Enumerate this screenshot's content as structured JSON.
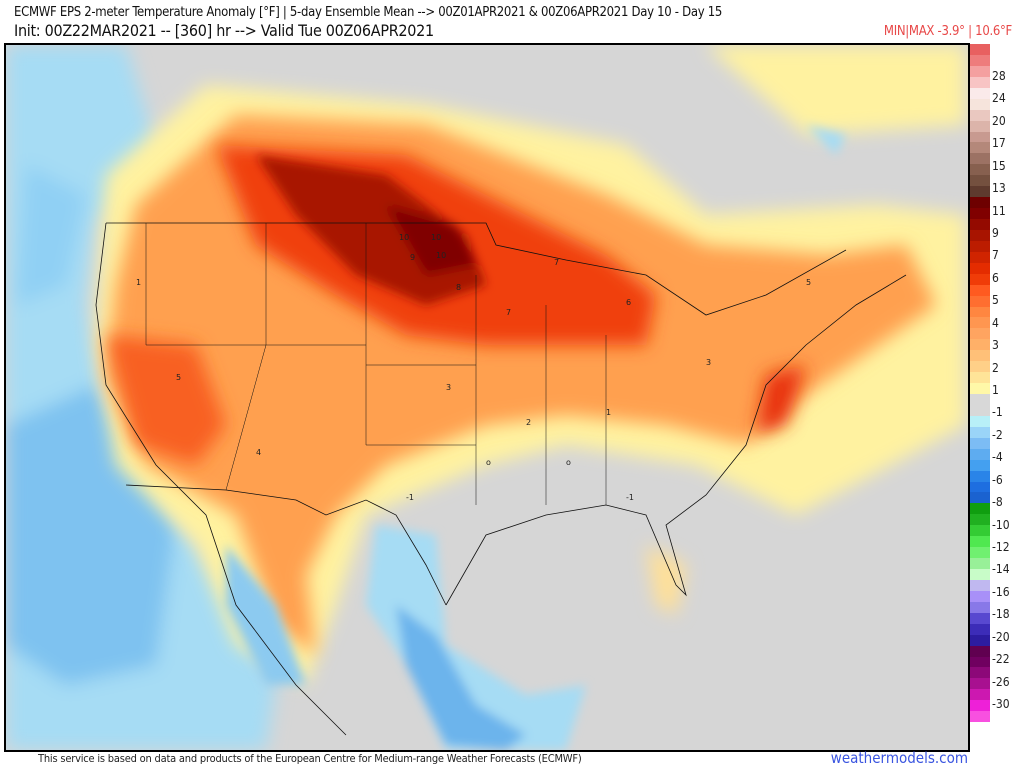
{
  "header": {
    "title": "ECMWF EPS 2-meter Temperature Anomaly [°F] | 5-day Ensemble Mean --> 00Z01APR2021 & 00Z06APR2021   Day 10 - Day 15",
    "init_line": "Init: 00Z22MAR2021 -- [360] hr --> Valid Tue 00Z06APR2021",
    "minmax": "MIN|MAX -3.9° | 10.6°F"
  },
  "colorbar": {
    "labels": [
      "28",
      "24",
      "20",
      "17",
      "15",
      "13",
      "11",
      "9",
      "7",
      "6",
      "5",
      "4",
      "3",
      "2",
      "1",
      "-1",
      "-2",
      "-4",
      "-6",
      "-8",
      "-10",
      "-12",
      "-14",
      "-16",
      "-18",
      "-20",
      "-22",
      "-26",
      "-30"
    ],
    "colors": [
      "#e86060",
      "#ee7c7c",
      "#f4a0a0",
      "#f8c4c4",
      "#faeaea",
      "#f6e4dc",
      "#eac8c0",
      "#dcb4aa",
      "#c89a90",
      "#b4887a",
      "#9c7264",
      "#87604f",
      "#74503f",
      "#5e3a2e",
      "#6e0000",
      "#800000",
      "#940a00",
      "#a81400",
      "#bc1c00",
      "#d02400",
      "#e42c00",
      "#f03c08",
      "#ff5a20",
      "#ff6e30",
      "#ff8640",
      "#ff9650",
      "#ffa460",
      "#ffb068",
      "#ffc078",
      "#ffd088",
      "#ffe498",
      "#fff8a8",
      "#d8d8d8",
      "#d8d8d8",
      "#b8f0f8",
      "#9ad4f8",
      "#7cbcf4",
      "#5eacf0",
      "#44a0f0",
      "#2a84e8",
      "#1e6ee0",
      "#1a62d0",
      "#109e10",
      "#20b020",
      "#34cc34",
      "#50e850",
      "#70f070",
      "#98f098",
      "#c8fcc8",
      "#c0b8f0",
      "#a890f8",
      "#8878e8",
      "#5848d0",
      "#3c2cb8",
      "#2c1ca0",
      "#600050",
      "#700060",
      "#8c0878",
      "#a81090",
      "#cc18b0",
      "#ee20d8",
      "#f850e0"
    ]
  },
  "map": {
    "region": "North America",
    "variable_unit": "°F",
    "sample_values": [
      "10",
      "10",
      "10",
      "9",
      "8",
      "7",
      "7",
      "6",
      "5",
      "5",
      "4",
      "3",
      "3",
      "2",
      "1",
      "1",
      "-1",
      "-1",
      "o",
      "o"
    ]
  },
  "footer": {
    "credit": "This service is based on data and products of the European Centre for Medium-range Weather Forecasts (ECMWF)",
    "site": "weathermodels.com"
  }
}
